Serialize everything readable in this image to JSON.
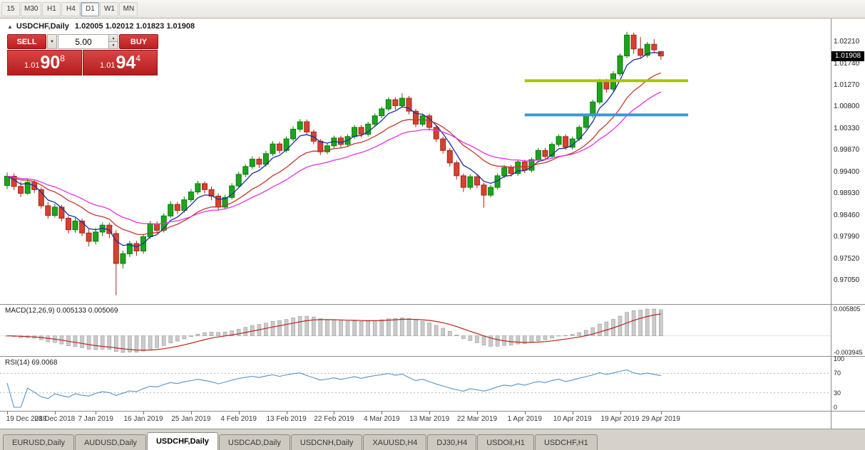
{
  "toolbar": {
    "timeframes": [
      {
        "label": "15",
        "active": false
      },
      {
        "label": "M30",
        "active": false
      },
      {
        "label": "H1",
        "active": false
      },
      {
        "label": "H4",
        "active": false
      },
      {
        "label": "D1",
        "active": true
      },
      {
        "label": "W1",
        "active": false
      },
      {
        "label": "MN",
        "active": false
      }
    ]
  },
  "icons": {
    "collapse": "▲",
    "dropdown": "▼",
    "spin_up": "▲",
    "spin_down": "▼"
  },
  "chart": {
    "title": "USDCHF,Daily",
    "ohlc": "1.02005 1.02012 1.01823 1.01908"
  },
  "trade_panel": {
    "sell_label": "SELL",
    "buy_label": "BUY",
    "volume": "5.00",
    "sell_price": {
      "prefix": "1.01",
      "big": "90",
      "sup": "8"
    },
    "buy_price": {
      "prefix": "1.01",
      "big": "94",
      "sup": "4"
    }
  },
  "tabs": [
    {
      "label": "EURUSD,Daily",
      "active": false
    },
    {
      "label": "AUDUSD,Daily",
      "active": false
    },
    {
      "label": "USDCHF,Daily",
      "active": true
    },
    {
      "label": "USDCAD,Daily",
      "active": false
    },
    {
      "label": "USDCNH,Daily",
      "active": false
    },
    {
      "label": "XAUUSD,H4",
      "active": false
    },
    {
      "label": "DJ30,H4",
      "active": false
    },
    {
      "label": "USDOil,H1",
      "active": false
    },
    {
      "label": "USDCHF,H1",
      "active": false
    }
  ],
  "chart_data": {
    "type": "candlestick",
    "symbol": "USDCHF",
    "timeframe": "Daily",
    "current_price": "1.01908",
    "y_axis_labels": [
      "1.02210",
      "1.01740",
      "1.01270",
      "1.00800",
      "1.00330",
      "0.99870",
      "0.99400",
      "0.98930",
      "0.98460",
      "0.97990",
      "0.97520",
      "0.97050"
    ],
    "x_tick_indices": [
      0,
      7,
      13,
      20,
      27,
      34,
      41,
      48,
      55,
      62,
      69,
      76,
      83,
      90,
      96
    ],
    "x_tick_labels": [
      "19 Dec 2018",
      "28 Dec 2018",
      "7 Jan 2019",
      "16 Jan 2019",
      "25 Jan 2019",
      "4 Feb 2019",
      "13 Feb 2019",
      "22 Feb 2019",
      "4 Mar 2019",
      "13 Mar 2019",
      "22 Mar 2019",
      "1 Apr 2019",
      "10 Apr 2019",
      "19 Apr 2019",
      "29 Apr 2019"
    ],
    "candles_ohlc": [
      [
        0.991,
        0.9938,
        0.9902,
        0.993
      ],
      [
        0.993,
        0.9936,
        0.99,
        0.9908
      ],
      [
        0.9908,
        0.9918,
        0.9885,
        0.9893
      ],
      [
        0.9893,
        0.9925,
        0.989,
        0.9917
      ],
      [
        0.9917,
        0.9922,
        0.9894,
        0.9901
      ],
      [
        0.9901,
        0.9906,
        0.986,
        0.9866
      ],
      [
        0.9866,
        0.9874,
        0.9838,
        0.9845
      ],
      [
        0.9845,
        0.987,
        0.984,
        0.9863
      ],
      [
        0.9863,
        0.9868,
        0.9832,
        0.9839
      ],
      [
        0.9839,
        0.9844,
        0.9806,
        0.9814
      ],
      [
        0.9814,
        0.984,
        0.9808,
        0.9833
      ],
      [
        0.9833,
        0.9838,
        0.98,
        0.9807
      ],
      [
        0.9807,
        0.9815,
        0.9778,
        0.9789
      ],
      [
        0.9789,
        0.9818,
        0.9782,
        0.9809
      ],
      [
        0.9809,
        0.983,
        0.98,
        0.9824
      ],
      [
        0.9824,
        0.9829,
        0.9796,
        0.9806
      ],
      [
        0.9806,
        0.9813,
        0.9672,
        0.9741
      ],
      [
        0.9741,
        0.9769,
        0.973,
        0.9762
      ],
      [
        0.9762,
        0.979,
        0.9755,
        0.9784
      ],
      [
        0.9784,
        0.979,
        0.9758,
        0.9768
      ],
      [
        0.9768,
        0.9805,
        0.9762,
        0.9799
      ],
      [
        0.9799,
        0.9833,
        0.9794,
        0.9827
      ],
      [
        0.9827,
        0.9832,
        0.9806,
        0.9813
      ],
      [
        0.9813,
        0.985,
        0.9808,
        0.9844
      ],
      [
        0.9844,
        0.9876,
        0.984,
        0.9869
      ],
      [
        0.9869,
        0.9874,
        0.9848,
        0.9856
      ],
      [
        0.9856,
        0.9886,
        0.9851,
        0.9879
      ],
      [
        0.9879,
        0.9902,
        0.9874,
        0.9896
      ],
      [
        0.9896,
        0.992,
        0.989,
        0.9914
      ],
      [
        0.9914,
        0.9919,
        0.9893,
        0.9901
      ],
      [
        0.9901,
        0.9908,
        0.9878,
        0.9887
      ],
      [
        0.9887,
        0.9893,
        0.9855,
        0.9863
      ],
      [
        0.9863,
        0.989,
        0.9858,
        0.9884
      ],
      [
        0.9884,
        0.9915,
        0.988,
        0.9909
      ],
      [
        0.9909,
        0.994,
        0.9904,
        0.9934
      ],
      [
        0.9934,
        0.9956,
        0.9928,
        0.9951
      ],
      [
        0.9951,
        0.9973,
        0.9946,
        0.9967
      ],
      [
        0.9967,
        0.9972,
        0.9948,
        0.9956
      ],
      [
        0.9956,
        0.9985,
        0.9951,
        0.9979
      ],
      [
        0.9979,
        1.0006,
        0.9974,
        1.0
      ],
      [
        1.0,
        1.0005,
        0.9979,
        0.9986
      ],
      [
        0.9986,
        1.0016,
        0.9981,
        1.0011
      ],
      [
        1.0011,
        1.0038,
        1.0006,
        1.0032
      ],
      [
        1.0032,
        1.0054,
        1.0026,
        1.0048
      ],
      [
        1.0048,
        1.0053,
        1.0019,
        1.0026
      ],
      [
        1.0026,
        1.0031,
        0.9999,
        1.0006
      ],
      [
        1.0006,
        1.0011,
        0.9976,
        0.9983
      ],
      [
        0.9983,
        1.0001,
        0.9978,
        0.9996
      ],
      [
        0.9996,
        1.0018,
        0.9991,
        1.0013
      ],
      [
        1.0013,
        1.0018,
        0.9992,
        0.9999
      ],
      [
        0.9999,
        1.0021,
        0.9994,
        1.0016
      ],
      [
        1.0016,
        1.0041,
        1.0011,
        1.0036
      ],
      [
        1.0036,
        1.0041,
        1.0014,
        1.0021
      ],
      [
        1.0021,
        1.0048,
        1.0016,
        1.0043
      ],
      [
        1.0043,
        1.0066,
        1.0038,
        1.0061
      ],
      [
        1.0061,
        1.0081,
        1.0056,
        1.0076
      ],
      [
        1.0076,
        1.0101,
        1.0071,
        1.0096
      ],
      [
        1.0096,
        1.0101,
        1.0074,
        1.0083
      ],
      [
        1.0083,
        1.011,
        1.0078,
        1.0099
      ],
      [
        1.0099,
        1.0104,
        1.0064,
        1.0071
      ],
      [
        1.0071,
        1.0076,
        1.0036,
        1.0043
      ],
      [
        1.0043,
        1.0066,
        1.0038,
        1.0061
      ],
      [
        1.0061,
        1.0066,
        1.0029,
        1.0036
      ],
      [
        1.0036,
        1.0041,
        1.0004,
        1.0011
      ],
      [
        1.0011,
        1.0016,
        0.9979,
        0.9986
      ],
      [
        0.9986,
        0.9991,
        0.9951,
        0.9959
      ],
      [
        0.9959,
        0.9964,
        0.9923,
        0.9931
      ],
      [
        0.9931,
        0.9936,
        0.9896,
        0.9906
      ],
      [
        0.9906,
        0.9934,
        0.9901,
        0.9929
      ],
      [
        0.9929,
        0.9934,
        0.9904,
        0.9911
      ],
      [
        0.9911,
        0.9916,
        0.9862,
        0.9889
      ],
      [
        0.9889,
        0.9911,
        0.9884,
        0.9906
      ],
      [
        0.9906,
        0.9936,
        0.9901,
        0.9931
      ],
      [
        0.9931,
        0.9954,
        0.9926,
        0.9949
      ],
      [
        0.9949,
        0.9954,
        0.9929,
        0.9936
      ],
      [
        0.9936,
        0.9966,
        0.9931,
        0.9961
      ],
      [
        0.9961,
        0.9966,
        0.9937,
        0.9943
      ],
      [
        0.9943,
        0.9971,
        0.9938,
        0.9966
      ],
      [
        0.9966,
        0.9991,
        0.9961,
        0.9986
      ],
      [
        0.9986,
        0.9991,
        0.9966,
        0.9973
      ],
      [
        0.9973,
        1.0004,
        0.9968,
        0.9999
      ],
      [
        0.9999,
        1.0021,
        0.9994,
        1.0016
      ],
      [
        1.0016,
        1.0021,
        0.9987,
        0.9993
      ],
      [
        0.9993,
        1.0016,
        0.9988,
        1.0011
      ],
      [
        1.0011,
        1.0041,
        1.0006,
        1.0036
      ],
      [
        1.0036,
        1.0066,
        1.0031,
        1.0061
      ],
      [
        1.0061,
        1.0096,
        1.0056,
        1.0091
      ],
      [
        1.0091,
        1.0141,
        1.0086,
        1.0136
      ],
      [
        1.0136,
        1.0141,
        1.0111,
        1.0119
      ],
      [
        1.0119,
        1.0158,
        1.0114,
        1.0152
      ],
      [
        1.0152,
        1.0196,
        1.0147,
        1.0191
      ],
      [
        1.0191,
        1.0243,
        1.0186,
        1.0236
      ],
      [
        1.0236,
        1.0241,
        1.0196,
        1.0206
      ],
      [
        1.0206,
        1.0232,
        1.0185,
        1.0192
      ],
      [
        1.0192,
        1.0221,
        1.0187,
        1.0216
      ],
      [
        1.0216,
        1.0227,
        1.0196,
        1.0204
      ],
      [
        1.02005,
        1.02012,
        1.01823,
        1.01908
      ]
    ],
    "overlays": {
      "moving_averages": [
        {
          "name": "ma-fast-line",
          "period": 5,
          "color": "#1a2f9e"
        },
        {
          "name": "ma-medium-line",
          "period": 13,
          "color": "#c0392b"
        },
        {
          "name": "ma-slow-line",
          "period": 22,
          "color": "#e332e3"
        }
      ],
      "hlines": [
        {
          "name": "resistance-line",
          "price": 1.0137,
          "color": "#a8c400",
          "width": 4,
          "from_index": 76,
          "to_index": 100
        },
        {
          "name": "support-line",
          "price": 1.0063,
          "color": "#3d96d6",
          "width": 4,
          "from_index": 76,
          "to_index": 100
        }
      ]
    },
    "indicators": {
      "macd": {
        "label": "MACD(12,26,9) 0.005133 0.005069",
        "fast": 12,
        "slow": 26,
        "signal": 9,
        "scale_max": "0.005805",
        "scale_min": "-0.003945",
        "histogram_color": "#cbcbcb",
        "signal_color": "#b8271c"
      },
      "rsi": {
        "label": "RSI(14) 69.0068",
        "period": 14,
        "levels": [
          70,
          30
        ],
        "scale_labels": [
          "100",
          "70",
          "30",
          "0"
        ],
        "color": "#4f94c9"
      }
    },
    "colors": {
      "up": "#1ca51c",
      "up_border": "#0c7a0c",
      "down": "#d9402f",
      "down_border": "#9e2a1c"
    }
  }
}
